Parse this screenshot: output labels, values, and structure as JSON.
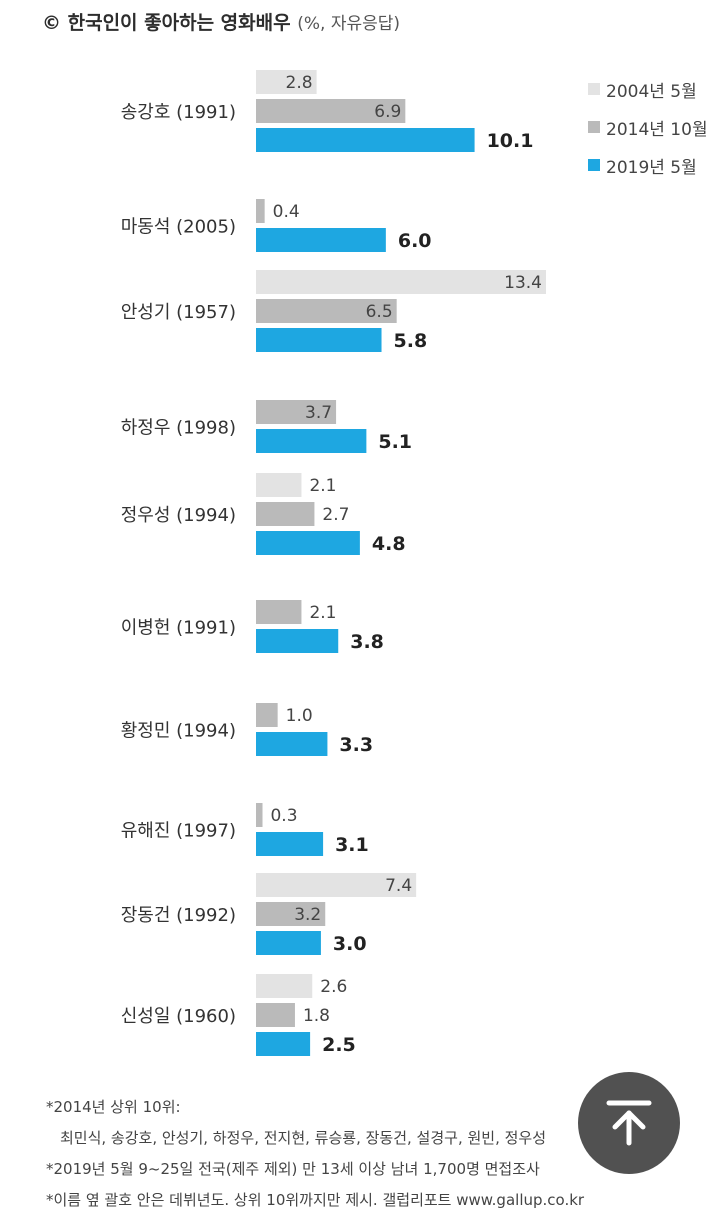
{
  "header": {
    "title": "© 한국인이 좋아하는 영화배우",
    "subtitle": "(%, 자유응답)"
  },
  "chart_data": {
    "type": "bar",
    "orientation": "horizontal",
    "title": "© 한국인이 좋아하는 영화배우 (%, 자유응답)",
    "categories": [
      "송강호 (1991)",
      "마동석 (2005)",
      "안성기 (1957)",
      "하정우 (1998)",
      "정우성 (1994)",
      "이병헌 (1991)",
      "황정민 (1994)",
      "유해진 (1997)",
      "장동건 (1992)",
      "신성일 (1960)"
    ],
    "series": [
      {
        "name": "2004년 5월",
        "color": "#e3e3e3",
        "values": [
          2.8,
          null,
          13.4,
          null,
          2.1,
          null,
          null,
          null,
          7.4,
          2.6
        ]
      },
      {
        "name": "2014년 10월",
        "color": "#bababa",
        "values": [
          6.9,
          0.4,
          6.5,
          3.7,
          2.7,
          2.1,
          1.0,
          0.3,
          3.2,
          1.8
        ]
      },
      {
        "name": "2019년 5월",
        "color": "#1ea7e1",
        "values": [
          10.1,
          6.0,
          5.8,
          5.1,
          4.8,
          3.8,
          3.3,
          3.1,
          3.0,
          2.5
        ]
      }
    ],
    "value_labels": [
      [
        "2.8",
        null,
        "13.4",
        null,
        "2.1",
        null,
        null,
        null,
        "7.4",
        "2.6"
      ],
      [
        "6.9",
        "0.4",
        "6.5",
        "3.7",
        "2.7",
        "2.1",
        "1.0",
        "0.3",
        "3.2",
        "1.8"
      ],
      [
        "10.1",
        "6.0",
        "5.8",
        "5.1",
        "4.8",
        "3.8",
        "3.3",
        "3.1",
        "3.0",
        "2.5"
      ]
    ],
    "xlim": [
      0,
      13.4
    ],
    "grid": false,
    "legend_position": "top-right"
  },
  "legend": {
    "items": [
      {
        "label": "2004년 5월",
        "color": "#e3e3e3"
      },
      {
        "label": "2014년 10월",
        "color": "#bababa"
      },
      {
        "label": "2019년 5월",
        "color": "#1ea7e1"
      }
    ]
  },
  "notes": {
    "line1": "*2014년 상위 10위:",
    "line2": "최민식, 송강호, 안성기, 하정우, 전지현, 류승룡, 장동건, 설경구, 원빈, 정우성",
    "line3": "*2019년 5월 9~25일 전국(제주 제외) 만 13세 이상 남녀 1,700명 면접조사",
    "line4": "*이름 옆 괄호 안은 데뷔년도. 상위 10위까지만 제시. 갤럽리포트 www.gallup.co.kr"
  },
  "scroll_top": {
    "icon": "arrow-up-icon"
  }
}
